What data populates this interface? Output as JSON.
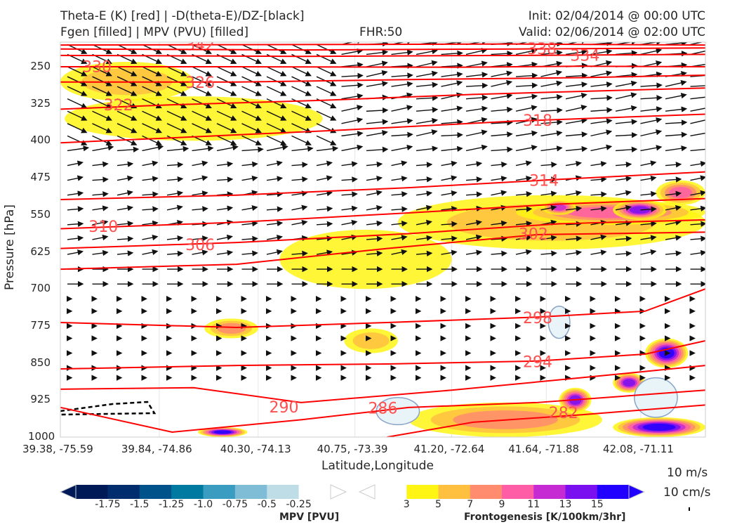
{
  "header": {
    "title_left_1": "Theta-E (K) [red] | -D(theta-E)/DZ-[black]",
    "title_left_2": "Fgen [filled] | MPV (PVU) [filled]",
    "title_center": "FHR:50",
    "title_right_1": "Init: 02/04/2014 @ 00:00 UTC",
    "title_right_2": "Valid: 02/06/2014 @ 02:00 UTC"
  },
  "chart_data": {
    "type": "cross-section",
    "xlabel": "Latitude,Longitude",
    "ylabel": "Pressure [hPa]",
    "x_ticks": [
      "39.38, -75.59",
      "39.84, -74.86",
      "40.30, -74.13",
      "40.75, -73.39",
      "41.20, -72.64",
      "41.64, -71.88",
      "42.08, -71.11"
    ],
    "x_tick_lat": [
      39.38,
      39.84,
      40.3,
      40.75,
      41.2,
      41.64,
      42.08
    ],
    "xlim_lat": [
      39.38,
      42.38
    ],
    "y_ticks": [
      "250",
      "325",
      "400",
      "475",
      "550",
      "625",
      "700",
      "775",
      "850",
      "925",
      "1000"
    ],
    "ylim": [
      200,
      1000
    ],
    "theta_e_color": "#ff0000",
    "theta_e_contours": [
      {
        "level": "342",
        "label_at": [
          40.03,
          205
        ],
        "points": [
          [
            39.38,
            206
          ],
          [
            40.5,
            205
          ],
          [
            41.5,
            204
          ],
          [
            42.38,
            206
          ]
        ]
      },
      {
        "level": "338",
        "label_at": [
          41.62,
          213
        ],
        "points": [
          [
            39.38,
            214
          ],
          [
            40.5,
            216
          ],
          [
            41.5,
            214
          ],
          [
            42.38,
            212
          ]
        ]
      },
      {
        "level": "334",
        "label_at": [
          41.62,
          230
        ],
        "points": [
          [
            39.38,
            227
          ],
          [
            40.5,
            229
          ],
          [
            41.5,
            227
          ],
          [
            42.38,
            225
          ]
        ]
      },
      {
        "level": "330",
        "label_at": [
          39.55,
          249
        ],
        "points": [
          [
            39.38,
            250
          ],
          [
            40.2,
            250
          ],
          [
            41.2,
            251
          ],
          [
            41.8,
            249
          ],
          [
            42.38,
            250
          ]
        ]
      },
      {
        "level": "326",
        "label_at": [
          40.03,
          281
        ],
        "points": [
          [
            39.38,
            281
          ],
          [
            40.2,
            281
          ],
          [
            41.0,
            276
          ],
          [
            41.8,
            272
          ],
          [
            42.38,
            267
          ]
        ]
      },
      {
        "level": "322",
        "label_at": [
          39.65,
          327
        ],
        "points": [
          [
            39.38,
            336
          ],
          [
            39.9,
            327
          ],
          [
            40.6,
            318
          ],
          [
            41.3,
            306
          ],
          [
            42.38,
            293
          ]
        ]
      },
      {
        "level": "318",
        "label_at": [
          41.6,
          358
        ],
        "points": [
          [
            39.38,
            404
          ],
          [
            40.0,
            392
          ],
          [
            40.7,
            378
          ],
          [
            41.5,
            360
          ],
          [
            42.38,
            346
          ]
        ]
      },
      {
        "level": "314",
        "label_at": [
          41.63,
          480
        ],
        "points": [
          [
            39.38,
            519
          ],
          [
            40.2,
            510
          ],
          [
            41.0,
            495
          ],
          [
            41.7,
            478
          ],
          [
            42.38,
            463
          ]
        ]
      },
      {
        "level": "310",
        "label_at": [
          39.58,
          573
        ],
        "points": [
          [
            39.38,
            578
          ],
          [
            40.2,
            565
          ],
          [
            41.0,
            546
          ],
          [
            41.7,
            528
          ],
          [
            42.38,
            517
          ]
        ]
      },
      {
        "level": "306",
        "label_at": [
          40.03,
          610
        ],
        "points": [
          [
            39.38,
            618
          ],
          [
            40.2,
            606
          ],
          [
            41.0,
            588
          ],
          [
            41.7,
            568
          ],
          [
            42.38,
            560
          ]
        ]
      },
      {
        "level": "302",
        "label_at": [
          41.58,
          588
        ],
        "points": [
          [
            39.38,
            660
          ],
          [
            40.2,
            650
          ],
          [
            40.9,
            618
          ],
          [
            41.6,
            590
          ],
          [
            42.38,
            585
          ]
        ]
      },
      {
        "level": "298",
        "label_at": [
          41.6,
          758
        ],
        "points": [
          [
            39.38,
            768
          ],
          [
            40.2,
            778
          ],
          [
            40.9,
            768
          ],
          [
            41.6,
            757
          ],
          [
            42.1,
            745
          ],
          [
            42.38,
            700
          ]
        ]
      },
      {
        "level": "294",
        "label_at": [
          41.6,
          847
        ],
        "points": [
          [
            39.38,
            862
          ],
          [
            40.2,
            855
          ],
          [
            40.9,
            852
          ],
          [
            41.6,
            846
          ],
          [
            42.1,
            832
          ],
          [
            42.38,
            805
          ]
        ]
      },
      {
        "level": "290",
        "label_at": [
          40.42,
          939
        ],
        "points": [
          [
            39.38,
            903
          ],
          [
            40.0,
            900
          ],
          [
            40.5,
            930
          ],
          [
            41.2,
            905
          ],
          [
            41.8,
            880
          ],
          [
            42.38,
            855
          ]
        ]
      },
      {
        "level": "286",
        "label_at": [
          40.88,
          941
        ],
        "points": [
          [
            39.38,
            940
          ],
          [
            39.9,
            990
          ],
          [
            40.5,
            965
          ],
          [
            41.0,
            940
          ],
          [
            41.6,
            930
          ],
          [
            42.38,
            905
          ]
        ]
      },
      {
        "level": "282",
        "label_at": [
          41.72,
          950
        ],
        "points": [
          [
            40.9,
            1000
          ],
          [
            41.3,
            970
          ],
          [
            41.8,
            955
          ],
          [
            42.38,
            935
          ]
        ]
      }
    ],
    "wind_levels_hpa": [
      205,
      225,
      250,
      270,
      290,
      315,
      340,
      365,
      390,
      420,
      450,
      480,
      510,
      540,
      570,
      600,
      630,
      660,
      690,
      720,
      745,
      775,
      800,
      830,
      860,
      880
    ],
    "fgen_blobs": [
      {
        "lat": [
          39.38,
          40.0
        ],
        "p": [
          240,
          320
        ],
        "value": 5
      },
      {
        "lat": [
          39.4,
          40.6
        ],
        "p": [
          310,
          400
        ],
        "value": 3
      },
      {
        "lat": [
          40.4,
          41.2
        ],
        "p": [
          580,
          700
        ],
        "value": 3
      },
      {
        "lat": [
          40.95,
          42.38
        ],
        "p": [
          510,
          620
        ],
        "value": 5
      },
      {
        "lat": [
          41.5,
          42.38
        ],
        "p": [
          520,
          570
        ],
        "value": 9
      },
      {
        "lat": [
          41.95,
          42.2
        ],
        "p": [
          520,
          560
        ],
        "value": 13
      },
      {
        "lat": [
          41.62,
          41.78
        ],
        "p": [
          520,
          550
        ],
        "value": 11
      },
      {
        "lat": [
          42.15,
          42.38
        ],
        "p": [
          480,
          530
        ],
        "value": 9
      },
      {
        "lat": [
          40.7,
          40.95
        ],
        "p": [
          780,
          830
        ],
        "value": 5
      },
      {
        "lat": [
          40.05,
          40.3
        ],
        "p": [
          760,
          800
        ],
        "value": 7
      },
      {
        "lat": [
          41.0,
          41.9
        ],
        "p": [
          930,
          1000
        ],
        "value": 7
      },
      {
        "lat": [
          41.7,
          41.85
        ],
        "p": [
          900,
          950
        ],
        "value": 13
      },
      {
        "lat": [
          41.95,
          42.1
        ],
        "p": [
          870,
          910
        ],
        "value": 13
      },
      {
        "lat": [
          42.1,
          42.3
        ],
        "p": [
          800,
          860
        ],
        "value": 15
      },
      {
        "lat": [
          41.95,
          42.38
        ],
        "p": [
          960,
          1000
        ],
        "value": 15
      },
      {
        "lat": [
          40.02,
          40.25
        ],
        "p": [
          980,
          1000
        ],
        "value": 15
      }
    ],
    "mpv_blobs": [
      {
        "lat": [
          40.85,
          41.05
        ],
        "p": [
          920,
          975
        ],
        "value": -0.25
      },
      {
        "lat": [
          42.05,
          42.25
        ],
        "p": [
          880,
          960
        ],
        "value": -0.25
      },
      {
        "lat": [
          41.65,
          41.75
        ],
        "p": [
          735,
          800
        ],
        "value": -0.25
      }
    ]
  },
  "mpv_colorbar": {
    "title": "MPV [PVU]",
    "colors": [
      "#001a57",
      "#002d6e",
      "#00538a",
      "#007aa0",
      "#3a9cc0",
      "#7fbdd6",
      "#bedde6",
      "#ffffff"
    ],
    "labels": [
      "-1.75",
      "-1.5",
      "-1.25",
      "-1.0",
      "-0.75",
      "-0.5",
      "-0.25"
    ]
  },
  "fgen_colorbar": {
    "title": "Frontogenesis [K/100km/3hr]",
    "colors": [
      "#ffffff",
      "#fff514",
      "#ffc040",
      "#ff8c6e",
      "#ff5ea6",
      "#c62ad2",
      "#7a10f0",
      "#2200ff"
    ],
    "labels": [
      "3",
      "5",
      "7",
      "9",
      "11",
      "13",
      "15"
    ]
  },
  "vector_key": {
    "wind": "10 m/s",
    "vertical": "10 cm/s"
  }
}
